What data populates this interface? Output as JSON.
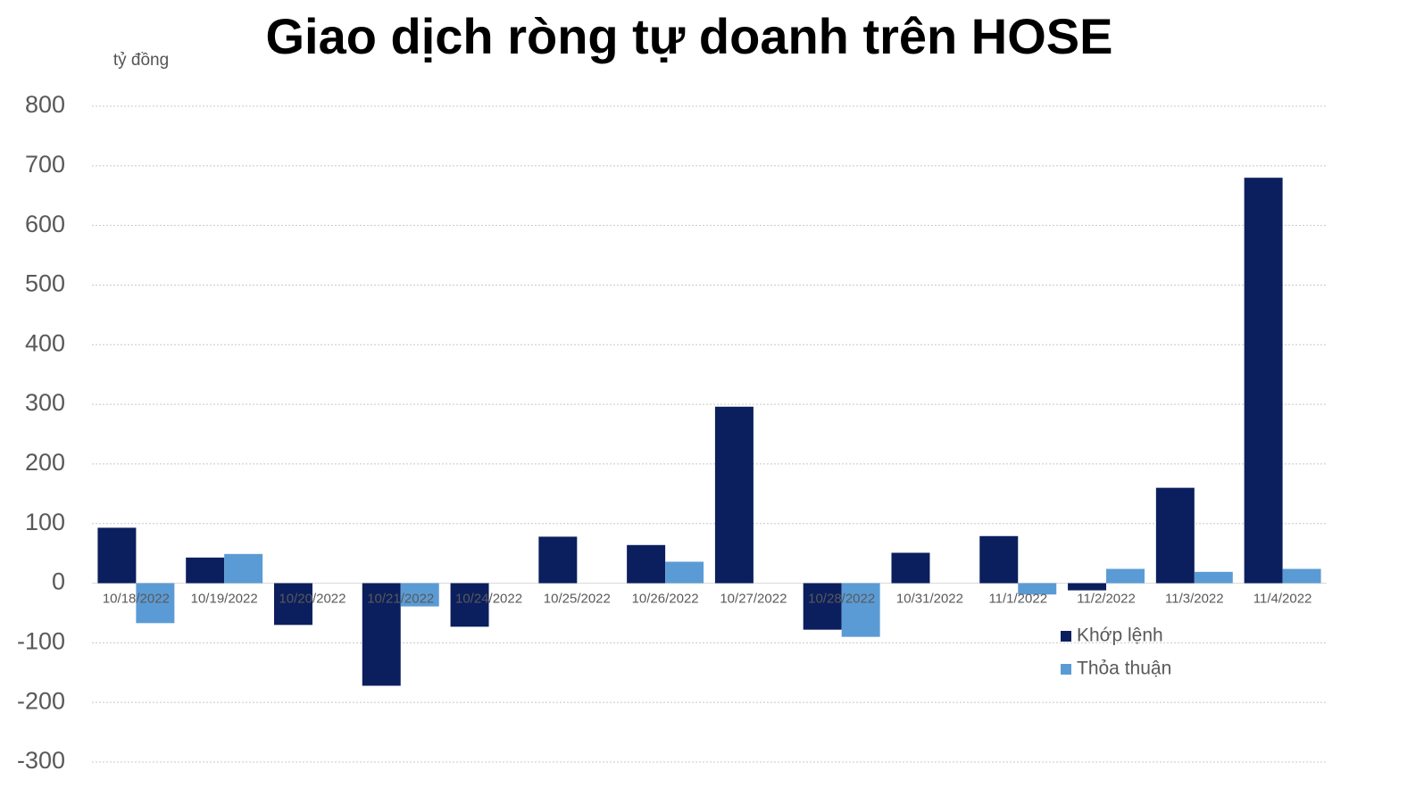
{
  "chart_data": {
    "type": "bar",
    "title": "Giao dịch ròng tự doanh trên HOSE",
    "y_label": "tỷ đồng",
    "categories": [
      "10/18/2022",
      "10/19/2022",
      "10/20/2022",
      "10/21/2022",
      "10/24/2022",
      "10/25/2022",
      "10/26/2022",
      "10/27/2022",
      "10/28/2022",
      "10/31/2022",
      "11/1/2022",
      "11/2/2022",
      "11/3/2022",
      "11/4/2022"
    ],
    "series": [
      {
        "name": "Khớp lệnh",
        "color": "#0b1f5e",
        "values": [
          93,
          43,
          -70,
          -172,
          -73,
          78,
          64,
          296,
          -78,
          51,
          79,
          -12,
          160,
          680
        ]
      },
      {
        "name": "Thỏa thuận",
        "color": "#5b9bd5",
        "values": [
          -67,
          49,
          0,
          -39,
          0,
          0,
          36,
          0,
          -90,
          0,
          -19,
          24,
          19,
          24
        ]
      }
    ],
    "ylim": [
      -300,
      800
    ],
    "yticks": [
      -300,
      -200,
      -100,
      0,
      100,
      200,
      300,
      400,
      500,
      600,
      700,
      800
    ],
    "grid": true
  }
}
